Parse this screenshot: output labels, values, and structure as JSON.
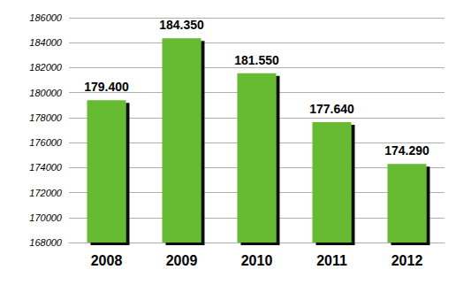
{
  "chart_data": {
    "type": "bar",
    "categories": [
      "2008",
      "2009",
      "2010",
      "2011",
      "2012"
    ],
    "values": [
      179400,
      184350,
      181550,
      177640,
      174290
    ],
    "value_labels": [
      "179.400",
      "184.350",
      "181.550",
      "177.640",
      "174.290"
    ],
    "color": "#66bb33",
    "ylim": [
      168000,
      186000
    ],
    "yticks": [
      168000,
      170000,
      172000,
      174000,
      176000,
      178000,
      180000,
      182000,
      184000,
      186000
    ],
    "grid": true,
    "data_labels": true
  }
}
